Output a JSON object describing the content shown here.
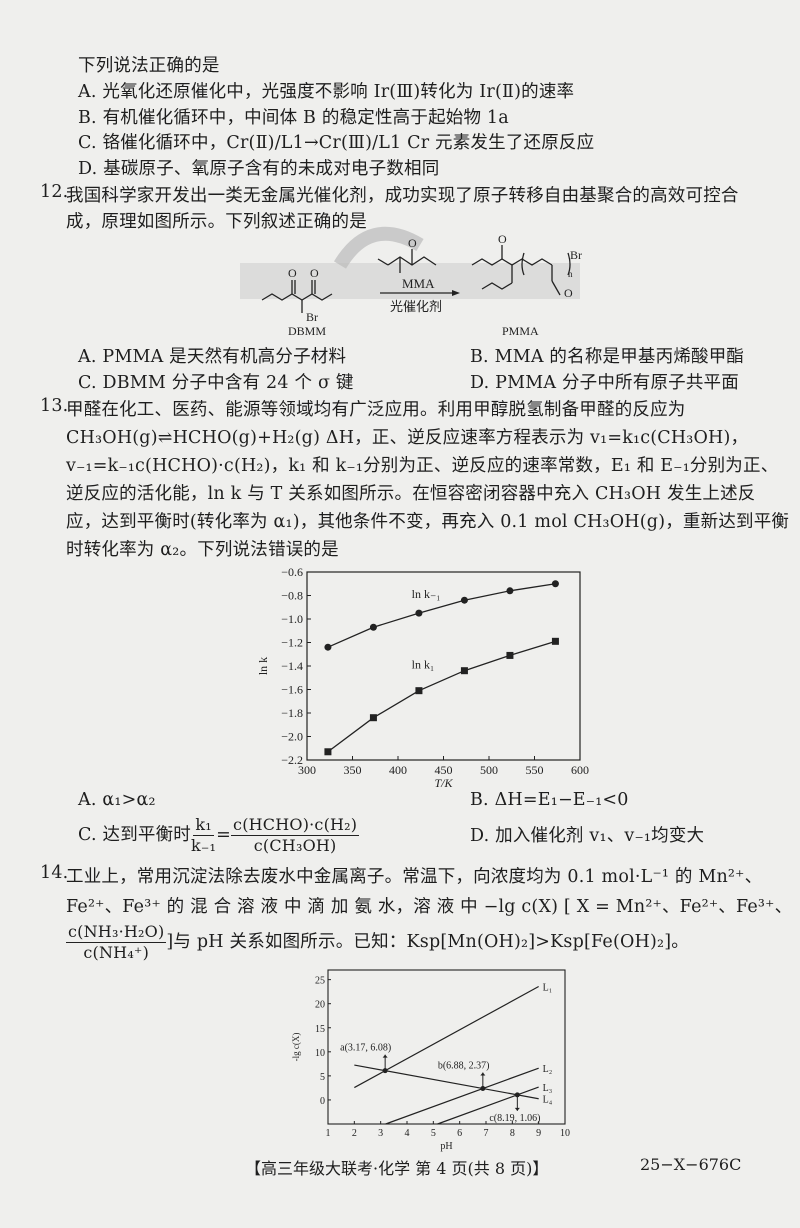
{
  "q11_tail": {
    "stem": "下列说法正确的是",
    "options": [
      "A. 光氧化还原催化中，光强度不影响 Ir(Ⅲ)转化为 Ir(Ⅱ)的速率",
      "B. 有机催化循环中，中间体 B 的稳定性高于起始物 1a",
      "C. 铬催化循环中，Cr(Ⅱ)/L1→Cr(Ⅲ)/L1 Cr 元素发生了还原反应",
      "D. 基碳原子、氧原子含有的未成对电子数相同"
    ]
  },
  "q12": {
    "number": "12.",
    "stem_line1": "我国科学家开发出一类无金属光催化剂，成功实现了原子转移自由基聚合的高效可控合",
    "stem_line2": "成，原理如图所示。下列叙述正确的是",
    "scheme": {
      "reactant": "DBMM",
      "reagent": "MMA",
      "condition": "光催化剂",
      "product": "PMMA",
      "atom_br": "Br",
      "atom_o": "O",
      "subscript_n": "n"
    },
    "options": [
      "A. PMMA 是天然有机高分子材料",
      "B. MMA 的名称是甲基丙烯酸甲酯",
      "C. DBMM 分子中含有 24 个 σ 键",
      "D. PMMA 分子中所有原子共平面"
    ]
  },
  "q13": {
    "number": "13.",
    "lines": [
      "甲醛在化工、医药、能源等领域均有广泛应用。利用甲醇脱氢制备甲醛的反应为",
      "CH₃OH(g)⇌HCHO(g)+H₂(g)  ΔH，正、逆反应速率方程表示为 v₁=k₁c(CH₃OH)，",
      "v₋₁=k₋₁c(HCHO)·c(H₂)，k₁ 和 k₋₁分别为正、逆反应的速率常数，E₁ 和 E₋₁分别为正、",
      "逆反应的活化能，ln k 与 T 关系如图所示。在恒容密闭容器中充入 CH₃OH 发生上述反",
      "应，达到平衡时(转化率为 α₁)，其他条件不变，再充入 0.1 mol CH₃OH(g)，重新达到平衡",
      "时转化率为 α₂。下列说法错误的是"
    ],
    "options": {
      "a": "A. α₁>α₂",
      "b": "B. ΔH=E₁−E₋₁<0",
      "c_prefix": "C. 达到平衡时",
      "c_frac1_num": "k₁",
      "c_frac1_den": "k₋₁",
      "c_eq": "=",
      "c_frac2_num": "c(HCHO)·c(H₂)",
      "c_frac2_den": "c(CH₃OH)",
      "d": "D. 加入催化剂 v₁、v₋₁均变大"
    }
  },
  "q14": {
    "number": "14.",
    "line1": "工业上，常用沉淀法除去废水中金属离子。常温下，向浓度均为 0.1 mol·L⁻¹ 的 Mn²⁺、",
    "line2": "Fe²⁺、Fe³⁺ 的 混 合 溶 液 中 滴 加 氨 水，溶 液 中 −lg c(X) [ X = Mn²⁺、Fe²⁺、Fe³⁺、",
    "frac_num": "c(NH₃·H₂O)",
    "frac_den": "c(NH₄⁺)",
    "line3_rest": "]与 pH 关系如图所示。已知：Ksp[Mn(OH)₂]>Ksp[Fe(OH)₂]。"
  },
  "chart_data": [
    {
      "type": "line",
      "xlabel": "T/K",
      "ylabel": "ln k",
      "xlim": [
        300,
        600
      ],
      "ylim": [
        -2.2,
        -0.6
      ],
      "xticks": [
        300,
        350,
        400,
        450,
        500,
        550,
        600
      ],
      "yticks": [
        -0.6,
        -0.8,
        -1.0,
        -1.2,
        -1.4,
        -1.6,
        -1.8,
        -2.0,
        -2.2
      ],
      "grid": false,
      "series": [
        {
          "name": "ln k₋₁",
          "marker": "circle",
          "x": [
            323,
            373,
            423,
            473,
            523,
            573
          ],
          "y": [
            -1.24,
            -1.07,
            -0.95,
            -0.84,
            -0.76,
            -0.7
          ]
        },
        {
          "name": "ln k₁",
          "marker": "square",
          "x": [
            323,
            373,
            423,
            473,
            523,
            573
          ],
          "y": [
            -2.13,
            -1.84,
            -1.61,
            -1.44,
            -1.31,
            -1.19
          ]
        }
      ]
    },
    {
      "type": "line",
      "xlabel": "pH",
      "ylabel": "-lg c(X)",
      "xlim": [
        1,
        10
      ],
      "ylim": [
        -5,
        27
      ],
      "xticks": [
        1,
        2,
        3,
        4,
        5,
        6,
        7,
        8,
        9,
        10
      ],
      "yticks": [
        0,
        5,
        10,
        15,
        20,
        25
      ],
      "grid": false,
      "series": [
        {
          "name": "L₁",
          "x": [
            2,
            9
          ],
          "y": [
            2.57,
            23.57
          ]
        },
        {
          "name": "L₂",
          "x": [
            3.19,
            9
          ],
          "y": [
            -5,
            6.61
          ]
        },
        {
          "name": "L₃",
          "x": [
            5.16,
            9
          ],
          "y": [
            -5,
            2.68
          ]
        },
        {
          "name": "L₄",
          "x": [
            2,
            9
          ],
          "y": [
            7.25,
            0.25
          ]
        }
      ],
      "annotations": [
        {
          "label": "a(3.17, 6.08)",
          "x": 3.17,
          "y": 6.08,
          "arrow": "up"
        },
        {
          "label": "b(6.88, 2.37)",
          "x": 6.88,
          "y": 2.37,
          "arrow": "up"
        },
        {
          "label": "c(8.19, 1.06)",
          "x": 8.19,
          "y": 1.06,
          "arrow": "down"
        }
      ]
    }
  ],
  "footer": {
    "center": "【高三年级大联考·化学  第 4 页(共 8 页)】",
    "right": "25−X−676C"
  }
}
